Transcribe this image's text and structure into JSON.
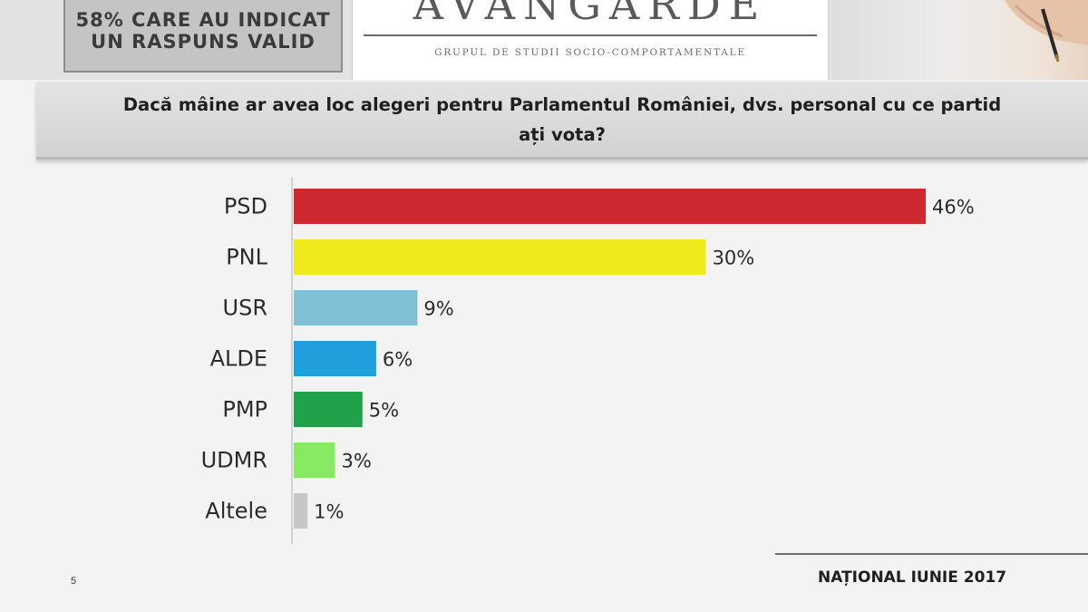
{
  "header": {
    "left_box_lines": [
      "",
      "58% CARE AU INDICAT",
      "UN RASPUNS VALID"
    ],
    "logo_text": "AVANGARDE",
    "logo_subtitle": "GRUPUL DE STUDII SOCIO-COMPORTAMENTALE"
  },
  "question": "Dacă mâine ar avea loc alegeri pentru Parlamentul României, dvs. personal cu ce partid ați vota?",
  "chart_data": {
    "type": "bar",
    "orientation": "horizontal",
    "categories": [
      "PSD",
      "PNL",
      "USR",
      "ALDE",
      "PMP",
      "UDMR",
      "Altele"
    ],
    "values": [
      46,
      30,
      9,
      6,
      5,
      3,
      1
    ],
    "value_labels": [
      "46%",
      "30%",
      "9%",
      "6%",
      "5%",
      "3%",
      "1%"
    ],
    "colors": [
      "#cc2a30",
      "#eeea1c",
      "#7fc0d6",
      "#1fa0dc",
      "#1fa24a",
      "#88ea62",
      "#c7c7c7"
    ],
    "xlim": [
      0,
      46
    ],
    "grid": false,
    "legend": "none"
  },
  "footer": {
    "label": "NAȚIONAL IUNIE 2017",
    "page_number": "5"
  }
}
